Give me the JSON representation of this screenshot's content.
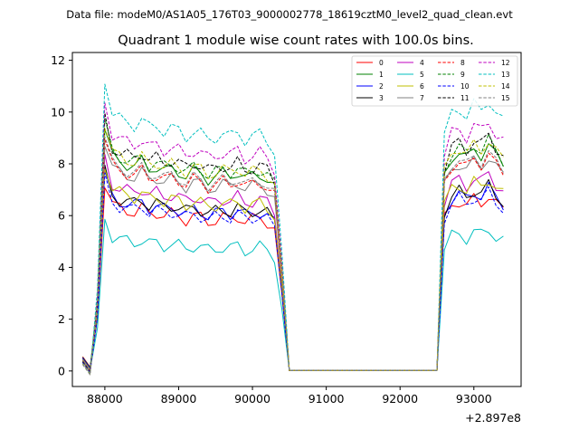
{
  "figure": {
    "suptitle": "Data file: modeM0/AS1A05_176T03_9000002778_18619cztM0_level2_quad_clean.evt"
  },
  "chart_data": {
    "type": "line",
    "title": "Quadrant 1 module wise count rates with 100.0s bins.",
    "xlabel": "",
    "ylabel": "",
    "offset_label": "+2.897e8",
    "x_ticks": [
      88000,
      89000,
      90000,
      91000,
      92000,
      93000
    ],
    "x_tick_labels": [
      "88000",
      "89000",
      "90000",
      "91000",
      "92000",
      "93000"
    ],
    "y_ticks": [
      0,
      2,
      4,
      6,
      8,
      10,
      12
    ],
    "y_tick_labels": [
      "0",
      "2",
      "4",
      "6",
      "8",
      "10",
      "12"
    ],
    "xlim": [
      87560,
      93640
    ],
    "ylim": [
      -0.6,
      12.3
    ],
    "grid": false,
    "legend_position": "upper right",
    "legend_columns": 4,
    "profile": {
      "x": [
        87700,
        87800,
        87900,
        88000,
        88100,
        88200,
        88300,
        88400,
        88500,
        88600,
        88700,
        88800,
        88900,
        89000,
        89100,
        89200,
        89300,
        89400,
        89500,
        89600,
        89700,
        89800,
        89900,
        90000,
        90100,
        90200,
        90300,
        90400,
        90500,
        90600,
        90700,
        90800,
        90900,
        91000,
        91100,
        91200,
        91300,
        91400,
        91500,
        91600,
        91700,
        91800,
        91900,
        92000,
        92100,
        92200,
        92300,
        92400,
        92500,
        92600,
        92700,
        92800,
        92900,
        93000,
        93100,
        93200,
        93300,
        93400
      ],
      "shape": [
        0.05,
        0.02,
        0.28,
        1.0,
        0.88,
        0.86,
        0.85,
        0.84,
        0.86,
        0.83,
        0.84,
        0.82,
        0.83,
        0.82,
        0.8,
        0.82,
        0.81,
        0.79,
        0.8,
        0.81,
        0.8,
        0.82,
        0.79,
        0.8,
        0.81,
        0.79,
        0.75,
        0.4,
        0,
        0,
        0,
        0,
        0,
        0,
        0,
        0,
        0,
        0,
        0,
        0,
        0,
        0,
        0,
        0,
        0,
        0,
        0,
        0,
        0,
        0.8,
        0.88,
        0.9,
        0.87,
        0.91,
        0.89,
        0.93,
        0.88,
        0.85
      ]
    },
    "series": [
      {
        "name": "0",
        "color": "#ff0000",
        "dash": "solid",
        "level": 7.3
      },
      {
        "name": "1",
        "color": "#008000",
        "dash": "solid",
        "level": 9.4
      },
      {
        "name": "2",
        "color": "#0000ff",
        "dash": "solid",
        "level": 7.6
      },
      {
        "name": "3",
        "color": "#000000",
        "dash": "solid",
        "level": 7.7
      },
      {
        "name": "4",
        "color": "#bf00bf",
        "dash": "solid",
        "level": 8.2
      },
      {
        "name": "5",
        "color": "#00bfbf",
        "dash": "solid",
        "level": 5.9
      },
      {
        "name": "6",
        "color": "#bfbf00",
        "dash": "solid",
        "level": 8.0
      },
      {
        "name": "7",
        "color": "#808080",
        "dash": "solid",
        "level": 8.9
      },
      {
        "name": "8",
        "color": "#ff0000",
        "dash": "dashed",
        "level": 9.0
      },
      {
        "name": "9",
        "color": "#008000",
        "dash": "dashed",
        "level": 9.6
      },
      {
        "name": "10",
        "color": "#0000ff",
        "dash": "dashed",
        "level": 7.4
      },
      {
        "name": "11",
        "color": "#000000",
        "dash": "dashed",
        "level": 9.8
      },
      {
        "name": "12",
        "color": "#bf00bf",
        "dash": "dashed",
        "level": 10.4
      },
      {
        "name": "13",
        "color": "#00bfbf",
        "dash": "dashed",
        "level": 11.3
      },
      {
        "name": "14",
        "color": "#bfbf00",
        "dash": "dashed",
        "level": 9.6
      },
      {
        "name": "15",
        "color": "#808080",
        "dash": "dashed",
        "level": 9.1
      }
    ]
  }
}
